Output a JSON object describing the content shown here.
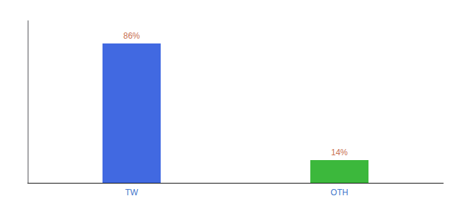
{
  "chart_data": {
    "type": "bar",
    "categories": [
      "TW",
      "OTH"
    ],
    "values": [
      86,
      14
    ],
    "value_labels": [
      "86%",
      "14%"
    ],
    "colors": [
      "#4169e1",
      "#3cb83c"
    ],
    "ylim": [
      0,
      100
    ],
    "data_labels": true,
    "tick_labels": "x",
    "grid": false
  }
}
